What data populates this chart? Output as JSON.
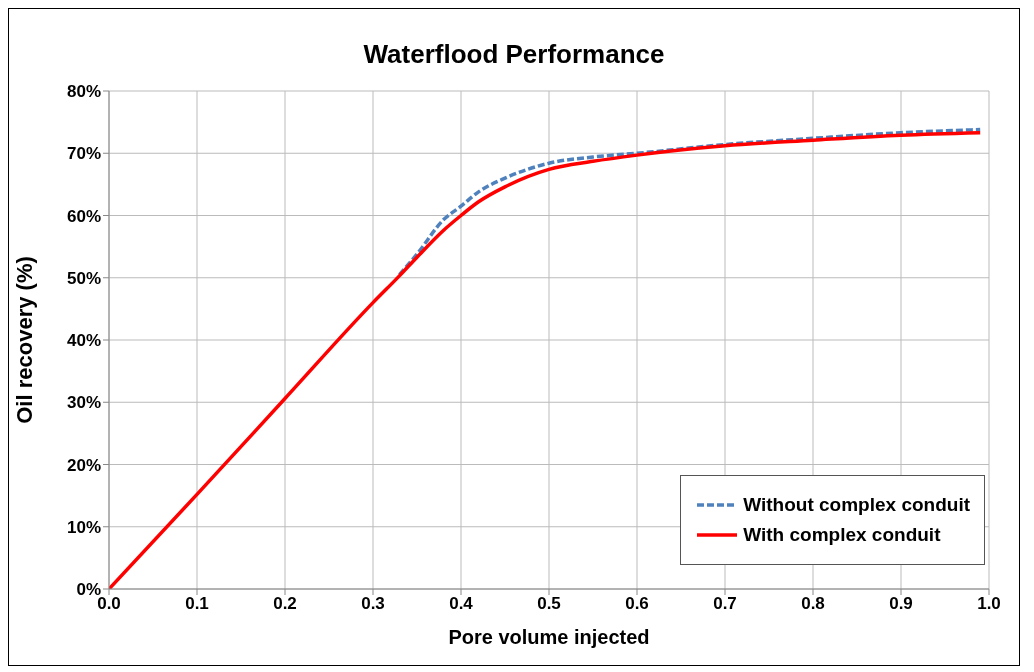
{
  "chart_data": {
    "type": "line",
    "title": "Waterflood Performance",
    "xlabel": "Pore volume injected",
    "ylabel": "Oil recovery (%)",
    "xlim": [
      0,
      1
    ],
    "xticks": [
      {
        "value": 0,
        "label": "0.0"
      },
      {
        "value": 0.1,
        "label": "0.1"
      },
      {
        "value": 0.2,
        "label": "0.2"
      },
      {
        "value": 0.3,
        "label": "0.3"
      },
      {
        "value": 0.4,
        "label": "0.4"
      },
      {
        "value": 0.5,
        "label": "0.5"
      },
      {
        "value": 0.6,
        "label": "0.6"
      },
      {
        "value": 0.7,
        "label": "0.7"
      },
      {
        "value": 0.8,
        "label": "0.8"
      },
      {
        "value": 0.9,
        "label": "0.9"
      },
      {
        "value": 1,
        "label": "1.0"
      }
    ],
    "ylim": [
      0,
      80
    ],
    "yticks": [
      {
        "value": 0,
        "label": "0%"
      },
      {
        "value": 10,
        "label": "10%"
      },
      {
        "value": 20,
        "label": "20%"
      },
      {
        "value": 30,
        "label": "30%"
      },
      {
        "value": 40,
        "label": "40%"
      },
      {
        "value": 50,
        "label": "50%"
      },
      {
        "value": 60,
        "label": "60%"
      },
      {
        "value": 70,
        "label": "70%"
      },
      {
        "value": 80,
        "label": "80%"
      }
    ],
    "grid": true,
    "legend": "bottom right",
    "marker": "none",
    "series": [
      {
        "name": "Without complex conduit",
        "color": "#4f81bd",
        "line_style": "dashed",
        "x": [
          0.33,
          0.35,
          0.38,
          0.4,
          0.42,
          0.45,
          0.5,
          0.55,
          0.6,
          0.7,
          0.8,
          0.9,
          0.99
        ],
        "values": [
          50.5,
          53.8,
          59.3,
          61.5,
          63.8,
          66,
          68.4,
          69.4,
          70,
          71.4,
          72.4,
          73.3,
          73.8
        ]
      },
      {
        "name": "With complex conduit",
        "color": "#ff0000",
        "line_style": "solid",
        "x": [
          0,
          0.1,
          0.2,
          0.3,
          0.33,
          0.35,
          0.38,
          0.4,
          0.42,
          0.45,
          0.5,
          0.55,
          0.6,
          0.7,
          0.8,
          0.9,
          0.99
        ],
        "values": [
          0,
          15.2,
          30.6,
          46,
          50.3,
          53.3,
          57.6,
          60,
          62.2,
          64.6,
          67.4,
          68.7,
          69.7,
          71.2,
          72.1,
          72.9,
          73.3
        ]
      }
    ]
  }
}
